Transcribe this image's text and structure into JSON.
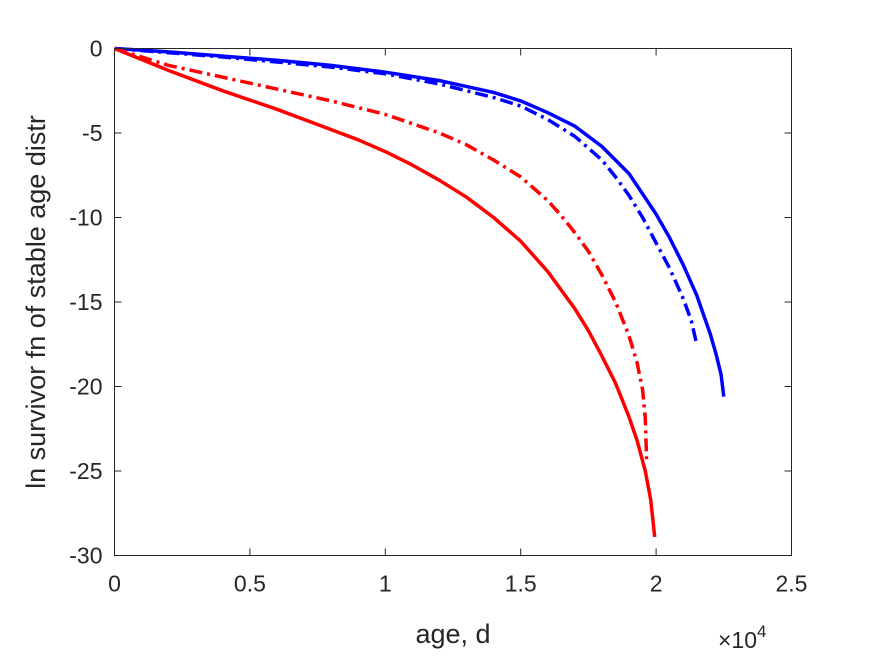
{
  "chart_data": {
    "type": "line",
    "title": "",
    "xlabel": "age, d",
    "ylabel": "ln survivor fn of stable age distr",
    "x_exponent_label": "×10",
    "x_exponent_power": "4",
    "xlim": [
      0,
      25000
    ],
    "ylim": [
      -30,
      0
    ],
    "x_tick_values": [
      0,
      5000,
      10000,
      15000,
      20000,
      25000
    ],
    "x_tick_labels": [
      "0",
      "0.5",
      "1",
      "1.5",
      "2",
      "2.5"
    ],
    "y_tick_values": [
      0,
      -5,
      -10,
      -15,
      -20,
      -25,
      -30
    ],
    "y_tick_labels": [
      "0",
      "-5",
      "-10",
      "-15",
      "-20",
      "-25",
      "-30"
    ],
    "grid": false,
    "series": [
      {
        "color": "#0000ff",
        "dash": "solid",
        "x": [
          0,
          2000,
          4000,
          6000,
          8000,
          10000,
          12000,
          14000,
          15000,
          16000,
          17000,
          18000,
          19000,
          20000,
          20500,
          21000,
          21500,
          22000,
          22200,
          22400,
          22500
        ],
        "y": [
          0,
          -0.2,
          -0.45,
          -0.7,
          -1.0,
          -1.4,
          -1.9,
          -2.6,
          -3.1,
          -3.8,
          -4.6,
          -5.8,
          -7.4,
          -9.8,
          -11.2,
          -12.8,
          -14.6,
          -16.9,
          -18.0,
          -19.3,
          -20.6
        ]
      },
      {
        "color": "#0000ff",
        "dash": "dashdot",
        "x": [
          0,
          2000,
          4000,
          6000,
          8000,
          10000,
          12000,
          14000,
          15000,
          16000,
          17000,
          18000,
          18500,
          19000,
          19500,
          20000,
          20500,
          21000,
          21300,
          21500
        ],
        "y": [
          0,
          -0.25,
          -0.5,
          -0.8,
          -1.1,
          -1.5,
          -2.1,
          -2.9,
          -3.4,
          -4.2,
          -5.2,
          -6.6,
          -7.6,
          -8.7,
          -10.0,
          -11.5,
          -13.0,
          -14.8,
          -16.1,
          -17.5
        ]
      },
      {
        "color": "#ff0000",
        "dash": "dashdot",
        "x": [
          0,
          1000,
          2000,
          4000,
          6000,
          8000,
          10000,
          12000,
          13000,
          14000,
          15000,
          16000,
          16500,
          17000,
          17500,
          18000,
          18500,
          19000,
          19300,
          19500,
          19600,
          19650
        ],
        "y": [
          0,
          -0.5,
          -1.0,
          -1.7,
          -2.4,
          -3.1,
          -3.9,
          -5.0,
          -5.7,
          -6.6,
          -7.6,
          -9.0,
          -9.9,
          -10.9,
          -12.0,
          -13.4,
          -15.0,
          -17.0,
          -18.6,
          -20.2,
          -21.9,
          -24.3
        ]
      },
      {
        "color": "#ff0000",
        "dash": "solid",
        "x": [
          0,
          2000,
          4000,
          6000,
          8000,
          9000,
          10000,
          11000,
          12000,
          13000,
          14000,
          15000,
          16000,
          17000,
          17500,
          18000,
          18500,
          19000,
          19300,
          19600,
          19800,
          19950
        ],
        "y": [
          0,
          -1.3,
          -2.5,
          -3.6,
          -4.8,
          -5.4,
          -6.1,
          -6.9,
          -7.8,
          -8.8,
          -10.0,
          -11.4,
          -13.2,
          -15.4,
          -16.7,
          -18.2,
          -19.8,
          -21.8,
          -23.2,
          -25.0,
          -26.7,
          -28.9
        ]
      }
    ]
  }
}
